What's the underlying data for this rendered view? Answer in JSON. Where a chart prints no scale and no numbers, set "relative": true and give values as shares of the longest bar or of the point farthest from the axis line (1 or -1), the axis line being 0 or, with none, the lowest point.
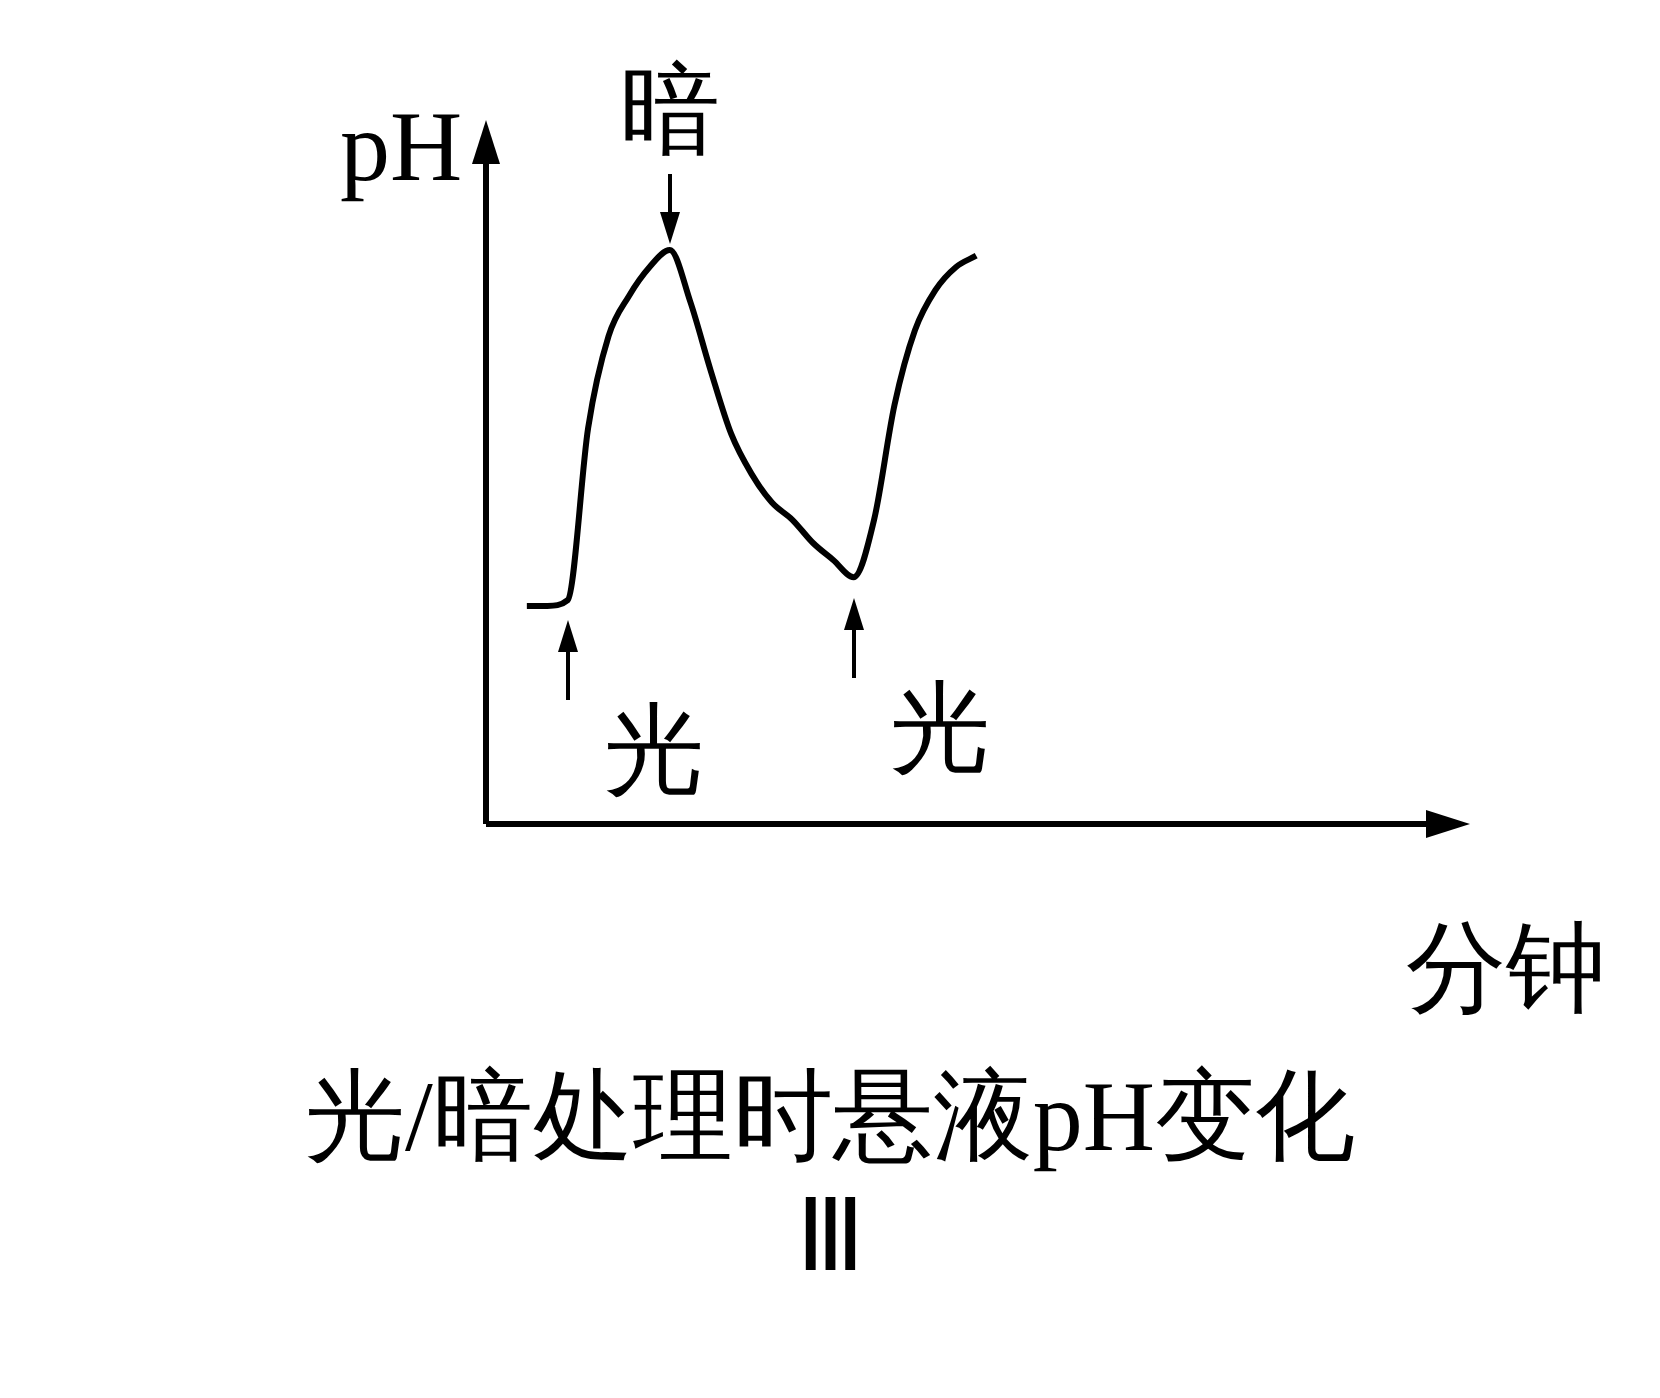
{
  "chart_data": {
    "type": "line",
    "relative": true,
    "title": "光/暗处理时悬液pH变化",
    "subtitle": "Ⅲ",
    "xlabel": "分钟",
    "ylabel": "pH",
    "categories": [
      null,
      null,
      null,
      null,
      null,
      null,
      null,
      null,
      null,
      null,
      null,
      null,
      null,
      null,
      null,
      null,
      null,
      null,
      null,
      null,
      null,
      null,
      null,
      null,
      null,
      null,
      null,
      null,
      null,
      null,
      null,
      null,
      null,
      null,
      null,
      null,
      null,
      null,
      null,
      null,
      null,
      null,
      null,
      null,
      null,
      null,
      null,
      null
    ],
    "values": [
      null,
      null,
      0.38,
      0.38,
      0.39,
      0.69,
      0.85,
      0.92,
      0.97,
      1.0,
      0.91,
      0.79,
      0.68,
      0.61,
      0.56,
      0.53,
      0.49,
      0.46,
      0.43,
      0.53,
      0.73,
      0.86,
      0.93,
      0.97,
      0.99,
      null,
      null,
      null,
      null,
      null,
      null,
      null,
      null,
      null,
      null,
      null,
      null,
      null,
      null,
      null,
      null,
      null,
      null,
      null,
      null,
      null,
      null,
      null
    ],
    "color": "#000000",
    "marker": "none",
    "legend": false,
    "grid": false,
    "annotations": [
      {
        "text": "暗",
        "y": 1.0
      },
      "光",
      "光"
    ]
  }
}
